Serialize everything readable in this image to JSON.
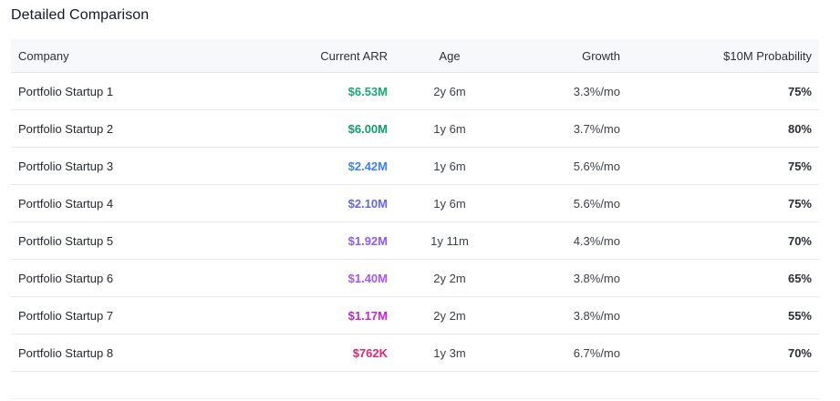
{
  "section": {
    "title": "Detailed Comparison"
  },
  "table": {
    "columns": [
      "Company",
      "Current ARR",
      "Age",
      "Growth",
      "$10M Probability"
    ],
    "rows": [
      {
        "company": "Portfolio Startup 1",
        "arr": "$6.53M",
        "age": "2y 6m",
        "growth": "3.3%/mo",
        "probability": "75%"
      },
      {
        "company": "Portfolio Startup 2",
        "arr": "$6.00M",
        "age": "1y 6m",
        "growth": "3.7%/mo",
        "probability": "80%"
      },
      {
        "company": "Portfolio Startup 3",
        "arr": "$2.42M",
        "age": "1y 6m",
        "growth": "5.6%/mo",
        "probability": "75%"
      },
      {
        "company": "Portfolio Startup 4",
        "arr": "$2.10M",
        "age": "1y 6m",
        "growth": "5.6%/mo",
        "probability": "75%"
      },
      {
        "company": "Portfolio Startup 5",
        "arr": "$1.92M",
        "age": "1y 11m",
        "growth": "4.3%/mo",
        "probability": "70%"
      },
      {
        "company": "Portfolio Startup 6",
        "arr": "$1.40M",
        "age": "2y 2m",
        "growth": "3.8%/mo",
        "probability": "65%"
      },
      {
        "company": "Portfolio Startup 7",
        "arr": "$1.17M",
        "age": "2y 2m",
        "growth": "3.8%/mo",
        "probability": "55%"
      },
      {
        "company": "Portfolio Startup 8",
        "arr": "$762K",
        "age": "1y 3m",
        "growth": "6.7%/mo",
        "probability": "70%"
      }
    ],
    "arr_colors": [
      "#19a974",
      "#0f9d6a",
      "#3b82f6",
      "#6366f1",
      "#8b5cf6",
      "#a855f7",
      "#c026d3",
      "#db2777"
    ]
  }
}
